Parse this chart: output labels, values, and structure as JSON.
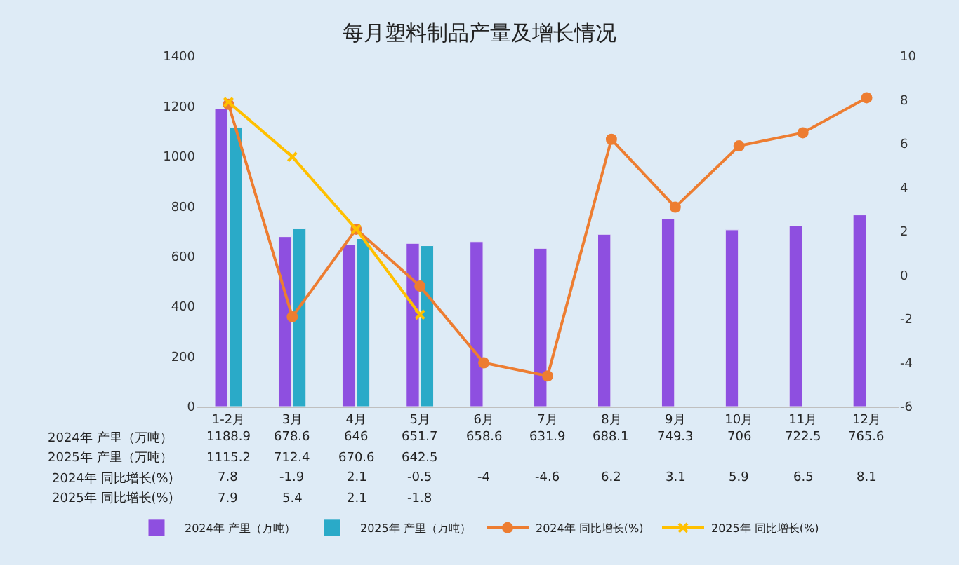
{
  "chart_data": {
    "type": "bar",
    "title": "每月塑料制品产量及增长情况",
    "categories": [
      "1-2月",
      "3月",
      "4月",
      "5月",
      "6月",
      "7月",
      "8月",
      "9月",
      "10月",
      "11月",
      "12月"
    ],
    "series": [
      {
        "name": "2024年 产里（万吨）",
        "color": "#8e4fe0",
        "values": [
          1188.9,
          678.6,
          646,
          651.7,
          658.6,
          631.9,
          688.1,
          749.3,
          706,
          722.5,
          765.6
        ]
      },
      {
        "name": "2025年 产里（万吨）",
        "color": "#2aaac8",
        "values": [
          1115.2,
          712.4,
          670.6,
          642.5,
          null,
          null,
          null,
          null,
          null,
          null,
          null
        ]
      },
      {
        "name": "2024年 同比增长(%)",
        "type": "line",
        "axis": "y2",
        "marker": "circle",
        "color": "#ed7d31",
        "values": [
          7.8,
          -1.9,
          2.1,
          -0.5,
          -4,
          -4.6,
          6.2,
          3.1,
          5.9,
          6.5,
          8.1
        ]
      },
      {
        "name": "2025年 同比增长(%)",
        "type": "line",
        "axis": "y2",
        "marker": "cross",
        "color": "#ffc000",
        "values": [
          7.9,
          5.4,
          2.1,
          -1.8,
          null,
          null,
          null,
          null,
          null,
          null,
          null
        ]
      }
    ],
    "ylim": [
      0,
      1400
    ],
    "yticks": [
      0,
      200,
      400,
      600,
      800,
      1000,
      1200,
      1400
    ],
    "y2lim": [
      -6,
      10
    ],
    "y2ticks": [
      -6,
      -4,
      -2,
      0,
      2,
      4,
      6,
      8,
      10
    ],
    "data_labels": true,
    "legend": "bottom"
  }
}
